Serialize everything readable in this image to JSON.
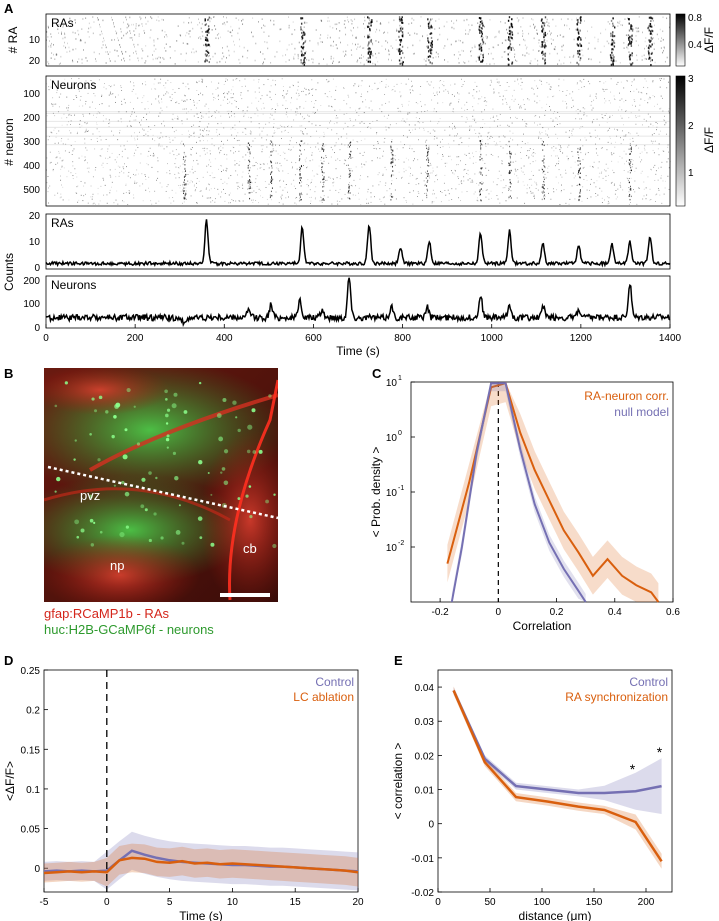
{
  "panels": {
    "A": "A",
    "B": "B",
    "C": "C",
    "D": "D",
    "E": "E"
  },
  "panelA": {
    "raster_top": {
      "label": "RAs",
      "ylabel": "# RA",
      "yticks": [
        "10",
        "20"
      ],
      "cbar_ticks": [
        "0.8",
        "0.4"
      ],
      "cbar_label": "ΔF/F"
    },
    "raster_bottom": {
      "label": "Neurons",
      "ylabel": "# neuron",
      "yticks": [
        "100",
        "200",
        "300",
        "400",
        "500"
      ],
      "cbar_ticks": [
        "3",
        "2",
        "1"
      ],
      "cbar_label": "ΔF/F"
    },
    "counts_label": "Counts",
    "trace_top": {
      "label": "RAs",
      "yticks": [
        "0",
        "10",
        "20"
      ]
    },
    "trace_bottom": {
      "label": "Neurons",
      "yticks": [
        "0",
        "100",
        "200"
      ]
    },
    "xticks": [
      "0",
      "200",
      "400",
      "600",
      "800",
      "1000",
      "1200",
      "1400"
    ],
    "xlabel": "Time (s)"
  },
  "panelB": {
    "region_pvz": "pvz",
    "region_np": "np",
    "region_cb": "cb",
    "legend_red": "gfap:RCaMP1b - RAs",
    "legend_green": "huc:H2B-GCaMP6f - neurons",
    "colors": {
      "red": "#d4261b",
      "green": "#2e9a2e"
    }
  },
  "chart_data": [
    {
      "id": "A-ras-counts",
      "type": "line",
      "ylabel": "Counts",
      "xlim": [
        0,
        1400
      ],
      "ylim": [
        0,
        20
      ],
      "peaks_x": [
        360,
        575,
        725,
        795,
        860,
        975,
        1040,
        1115,
        1195,
        1270,
        1310,
        1355
      ],
      "peaks_y": [
        18,
        15,
        16,
        8,
        10,
        13,
        14,
        9,
        9,
        9,
        10,
        12
      ],
      "baseline": 2
    },
    {
      "id": "A-neuron-counts",
      "type": "line",
      "xlim": [
        0,
        1400
      ],
      "ylim": [
        0,
        200
      ],
      "peaks_x": [
        310,
        455,
        505,
        570,
        620,
        680,
        775,
        855,
        975,
        1040,
        1115,
        1195,
        1310
      ],
      "peaks_y": [
        10,
        70,
        90,
        110,
        70,
        195,
        85,
        80,
        130,
        90,
        85,
        70,
        170
      ],
      "baseline": 40
    },
    {
      "id": "C",
      "type": "line",
      "xlabel": "Correlation",
      "ylabel": "< Prob. density >",
      "xlim": [
        -0.3,
        0.6
      ],
      "ylog": true,
      "ylim_exponents": [
        -3,
        1
      ],
      "xticks": [
        "-0.2",
        "0",
        "0.2",
        "0.4",
        "0.6"
      ],
      "yticks": [
        "10",
        "10",
        "10",
        "10"
      ],
      "yexps": [
        "1",
        "0",
        "-1",
        "-2"
      ],
      "series": [
        {
          "name": "RA-neuron corr.",
          "color": "#d95f0e",
          "x": [
            -0.175,
            -0.1,
            -0.025,
            0.025,
            0.075,
            0.125,
            0.175,
            0.225,
            0.275,
            0.325,
            0.375,
            0.425,
            0.475,
            0.525,
            0.55
          ],
          "y": [
            0.005,
            0.15,
            8,
            9.5,
            1.2,
            0.25,
            0.07,
            0.02,
            0.008,
            0.003,
            0.006,
            0.003,
            0.002,
            0.0015,
            0.001
          ]
        },
        {
          "name": "null model",
          "color": "#7570b3",
          "x": [
            -0.16,
            -0.125,
            -0.075,
            -0.025,
            0.025,
            0.075,
            0.125,
            0.175,
            0.225,
            0.275,
            0.3
          ],
          "y": [
            0.001,
            0.01,
            0.5,
            9.5,
            9.5,
            0.6,
            0.06,
            0.012,
            0.004,
            0.0016,
            0.001
          ]
        }
      ]
    },
    {
      "id": "D",
      "type": "line",
      "xlabel": "Time (s)",
      "ylabel": "<ΔF/F>",
      "xlim": [
        -5,
        20
      ],
      "ylim": [
        -0.03,
        0.25
      ],
      "xticks": [
        "-5",
        "0",
        "5",
        "10",
        "15",
        "20"
      ],
      "yticks": [
        "0",
        "0.05",
        "0.1",
        "0.15",
        "0.2",
        "0.25"
      ],
      "series": [
        {
          "name": "Control",
          "color": "#7570b3",
          "x": [
            -5,
            -4,
            -3,
            -2,
            -1,
            0,
            1,
            2,
            3,
            4,
            5,
            6,
            7,
            8,
            9,
            10,
            11,
            12,
            13,
            14,
            15,
            16,
            17,
            18,
            19,
            20
          ],
          "y": [
            -0.004,
            -0.003,
            -0.004,
            -0.003,
            -0.004,
            -0.003,
            0.01,
            0.022,
            0.017,
            0.013,
            0.01,
            0.008,
            0.007,
            0.006,
            0.005,
            0.004,
            0.004,
            0.003,
            0.002,
            0.002,
            0.001,
            0.0,
            -0.001,
            -0.002,
            -0.003,
            -0.004
          ]
        },
        {
          "name": "LC ablation",
          "color": "#d95f0e",
          "x": [
            -5,
            -4,
            -3,
            -2,
            -1,
            0,
            1,
            2,
            3,
            4,
            5,
            6,
            7,
            8,
            9,
            10,
            11,
            12,
            13,
            14,
            15,
            16,
            17,
            18,
            19,
            20
          ],
          "y": [
            -0.006,
            -0.005,
            -0.004,
            -0.005,
            -0.004,
            -0.005,
            0.01,
            0.013,
            0.012,
            0.008,
            0.007,
            0.009,
            0.006,
            0.007,
            0.005,
            0.006,
            0.005,
            0.004,
            0.003,
            0.002,
            0.001,
            0.0,
            -0.001,
            -0.002,
            -0.003,
            -0.005
          ]
        }
      ]
    },
    {
      "id": "E",
      "type": "line",
      "xlabel": "distance (μm)",
      "ylabel": "< correlation >",
      "xlim": [
        0,
        225
      ],
      "ylim": [
        -0.02,
        0.045
      ],
      "xticks": [
        "0",
        "50",
        "100",
        "150",
        "200"
      ],
      "yticks": [
        "-0.02",
        "-0.01",
        "0",
        "0.01",
        "0.02",
        "0.03",
        "0.04"
      ],
      "significance": [
        "*",
        "*"
      ],
      "series": [
        {
          "name": "Control",
          "color": "#7570b3",
          "x": [
            15,
            45,
            75,
            105,
            135,
            160,
            190,
            215
          ],
          "y": [
            0.039,
            0.019,
            0.011,
            0.01,
            0.009,
            0.009,
            0.0095,
            0.011
          ]
        },
        {
          "name": "RA synchronization",
          "color": "#d95f0e",
          "x": [
            15,
            45,
            75,
            105,
            135,
            160,
            190,
            215
          ],
          "y": [
            0.039,
            0.018,
            0.0078,
            0.0065,
            0.005,
            0.004,
            0.0005,
            -0.011
          ]
        }
      ]
    }
  ]
}
